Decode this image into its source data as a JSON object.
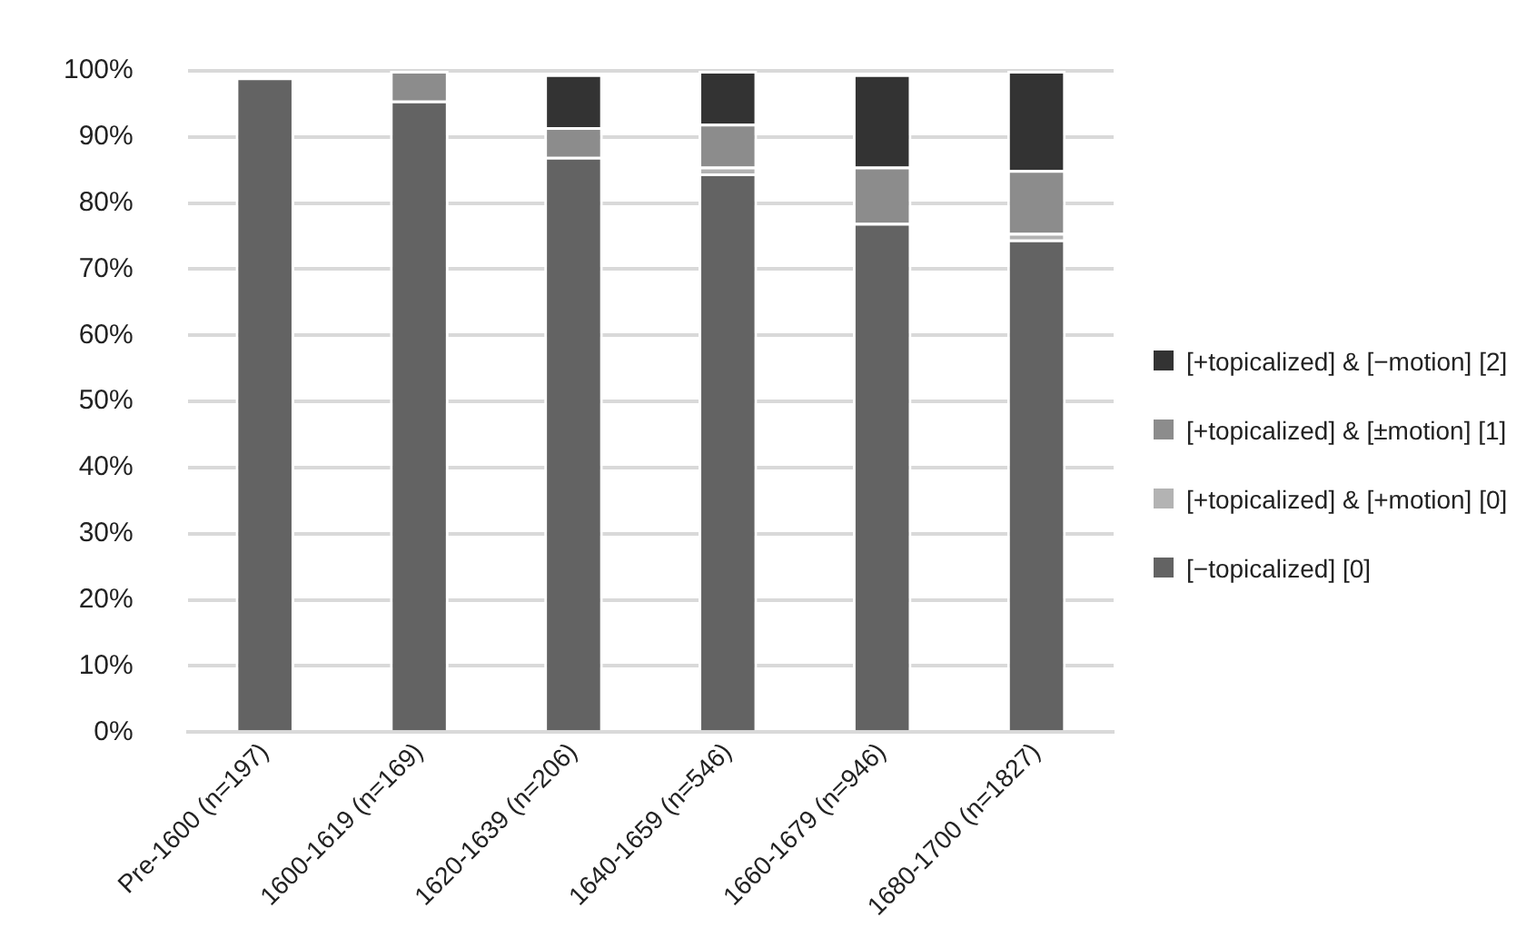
{
  "chart_data": {
    "type": "bar",
    "stacked": true,
    "categories": [
      "Pre-1600 (n=197)",
      "1600-1619 (n=169)",
      "1620-1639 (n=206)",
      "1640-1659 (n=546)",
      "1660-1679 (n=946)",
      "1680-1700 (n=1827)"
    ],
    "series": [
      {
        "name": "[−topicalized] [0]",
        "color": "#636363",
        "values": [
          99,
          95.5,
          87,
          84.5,
          77,
          74.5
        ]
      },
      {
        "name": "[+topicalized] & [+motion] [0]",
        "color": "#b3b3b3",
        "values": [
          0,
          0,
          null,
          1,
          null,
          1
        ]
      },
      {
        "name": "[+topicalized] & [±motion] [1]",
        "color": "#8c8c8c",
        "values": [
          0,
          4.5,
          4.5,
          6.5,
          8.5,
          9.5
        ]
      },
      {
        "name": "[+topicalized] & [−motion] [2]",
        "color": "#333333",
        "values": [
          0,
          0,
          8,
          8,
          14,
          15
        ]
      }
    ],
    "ylim": [
      0,
      100
    ],
    "yticks": [
      {
        "value": 0,
        "label": "0%"
      },
      {
        "value": 10,
        "label": "10%"
      },
      {
        "value": 20,
        "label": "20%"
      },
      {
        "value": 30,
        "label": "30%"
      },
      {
        "value": 40,
        "label": "40%"
      },
      {
        "value": 50,
        "label": "50%"
      },
      {
        "value": 60,
        "label": "60%"
      },
      {
        "value": 70,
        "label": "70%"
      },
      {
        "value": 80,
        "label": "80%"
      },
      {
        "value": 90,
        "label": "90%"
      },
      {
        "value": 100,
        "label": "100%"
      }
    ],
    "grid": "y",
    "legend": "right"
  }
}
